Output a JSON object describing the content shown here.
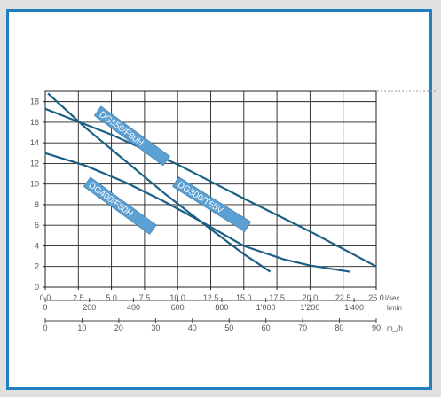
{
  "chart_data": {
    "type": "line",
    "title": "",
    "xlabel": "l/sec",
    "ylabel": "",
    "xlim": [
      0,
      25
    ],
    "ylim": [
      0,
      19
    ],
    "grid": true,
    "x_axes": [
      {
        "unit": "l/sec",
        "ticks": [
          "0.0",
          "2.5",
          "5.0",
          "7.5",
          "10.0",
          "12.5",
          "15.0",
          "17.5",
          "20.0",
          "22.5",
          "25.0"
        ],
        "values": [
          0,
          2.5,
          5,
          7.5,
          10,
          12.5,
          15,
          17.5,
          20,
          22.5,
          25
        ]
      },
      {
        "unit": "l/min",
        "ticks": [
          "0",
          "200",
          "400",
          "600",
          "800",
          "1'000",
          "1'200",
          "1'400"
        ],
        "values": [
          0,
          200,
          400,
          600,
          800,
          1000,
          1200,
          1400
        ]
      },
      {
        "unit": "m_/h",
        "ticks": [
          "0",
          "10",
          "20",
          "30",
          "40",
          "50",
          "60",
          "70",
          "80",
          "90"
        ],
        "values": [
          0,
          10,
          20,
          30,
          40,
          50,
          60,
          70,
          80,
          90
        ]
      }
    ],
    "y_ticks": [
      "0",
      "2",
      "4",
      "6",
      "8",
      "10",
      "12",
      "14",
      "16",
      "18"
    ],
    "series": [
      {
        "name": "DG550/F80H",
        "color": "#1d5f86",
        "x": [
          0,
          5,
          10,
          15,
          20,
          25
        ],
        "y": [
          17.3,
          14.8,
          11.9,
          8.6,
          5.4,
          2.0
        ]
      },
      {
        "name": "DG300/T65V",
        "color": "#1d5f86",
        "x": [
          0.2,
          3,
          6,
          9,
          12,
          15,
          17
        ],
        "y": [
          18.8,
          15.5,
          12.3,
          9.1,
          6.1,
          3.2,
          1.5
        ]
      },
      {
        "name": "DG400/F80H",
        "color": "#1d5f86",
        "x": [
          0,
          3,
          6,
          9,
          12,
          15,
          18,
          20,
          23
        ],
        "y": [
          13.0,
          11.8,
          10.2,
          8.3,
          6.2,
          4.0,
          2.7,
          2.1,
          1.5
        ]
      }
    ]
  }
}
